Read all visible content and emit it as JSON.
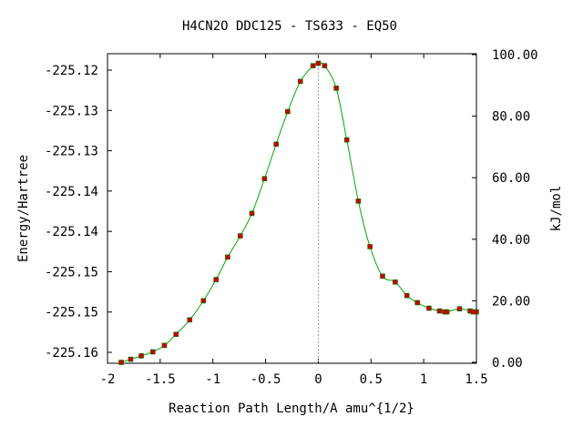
{
  "chart_data": {
    "type": "line",
    "title": "H4CN2O   DDC125 - TS633 - EQ50",
    "xlabel": "Reaction Path Length/A amu^{1/2}",
    "ylabel": "Energy/Hartree",
    "y2label": "kJ/mol",
    "xlim": [
      -2.0,
      1.5
    ],
    "x_ticks": [
      -2,
      -1.5,
      -1,
      -0.5,
      0,
      0.5,
      1,
      1.5
    ],
    "x_tick_labels": [
      "-2",
      "-1.5",
      "-1",
      "-0.5",
      "0",
      "0.5",
      "1",
      "1.5"
    ],
    "y2lim": [
      0,
      100
    ],
    "y2_ticks": [
      0,
      20,
      40,
      60,
      80,
      100
    ],
    "y2_tick_labels": [
      "0.00",
      "20.00",
      "40.00",
      "60.00",
      "80.00",
      "100.00"
    ],
    "y_tick_labels": [
      "-225.12",
      "-225.13",
      "-225.13",
      "-225.14",
      "-225.14",
      "-225.15",
      "-225.15",
      "-225.16"
    ],
    "vline_x": 0,
    "grid": false,
    "colors": {
      "curve": "#00aa00",
      "points": "#cc0000",
      "marker_edge": "#007700",
      "vline": "#999999"
    },
    "series": [
      {
        "x": [
          -1.87,
          -1.78,
          -1.68,
          -1.57,
          -1.46,
          -1.35,
          -1.22,
          -1.09,
          -0.97,
          -0.86,
          -0.74,
          -0.63,
          -0.51,
          -0.4,
          -0.29,
          -0.17,
          -0.05,
          0.0,
          0.06,
          0.17,
          0.27,
          0.38,
          0.49,
          0.61,
          0.73,
          0.84,
          0.94,
          1.05,
          1.15,
          1.2,
          1.22,
          1.34,
          1.44,
          1.47,
          1.5
        ],
        "y": [
          0.0,
          1.0,
          2.1,
          3.4,
          5.5,
          9.1,
          13.8,
          20.0,
          26.9,
          34.2,
          41.1,
          48.4,
          59.7,
          70.9,
          81.5,
          91.3,
          96.4,
          97.2,
          96.4,
          89.1,
          72.3,
          52.4,
          37.6,
          28.0,
          26.1,
          21.7,
          19.4,
          17.6,
          16.7,
          16.4,
          16.4,
          17.4,
          16.7,
          16.4,
          16.4
        ]
      }
    ]
  }
}
